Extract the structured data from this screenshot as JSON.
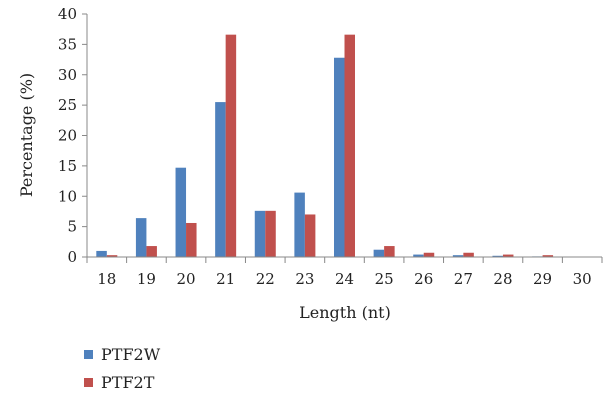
{
  "chart_data": {
    "type": "bar",
    "categories": [
      "18",
      "19",
      "20",
      "21",
      "22",
      "23",
      "24",
      "25",
      "26",
      "27",
      "28",
      "29",
      "30"
    ],
    "series": [
      {
        "name": "PTF2W",
        "color": "#4f81bd",
        "values": [
          1.0,
          6.4,
          14.7,
          25.5,
          7.6,
          10.6,
          32.8,
          1.2,
          0.4,
          0.3,
          0.2,
          0.1,
          0.0
        ]
      },
      {
        "name": "PTF2T",
        "color": "#c0504d",
        "values": [
          0.3,
          1.8,
          5.6,
          36.6,
          7.6,
          7.0,
          36.6,
          1.8,
          0.7,
          0.7,
          0.4,
          0.3,
          0.0
        ]
      }
    ],
    "xlabel": "Length (nt)",
    "ylabel": "Percentage (%)",
    "ylim": [
      0,
      40
    ],
    "yticks": [
      0,
      5,
      10,
      15,
      20,
      25,
      30,
      35,
      40
    ],
    "grid": false,
    "legend_position": "bottom-left"
  }
}
